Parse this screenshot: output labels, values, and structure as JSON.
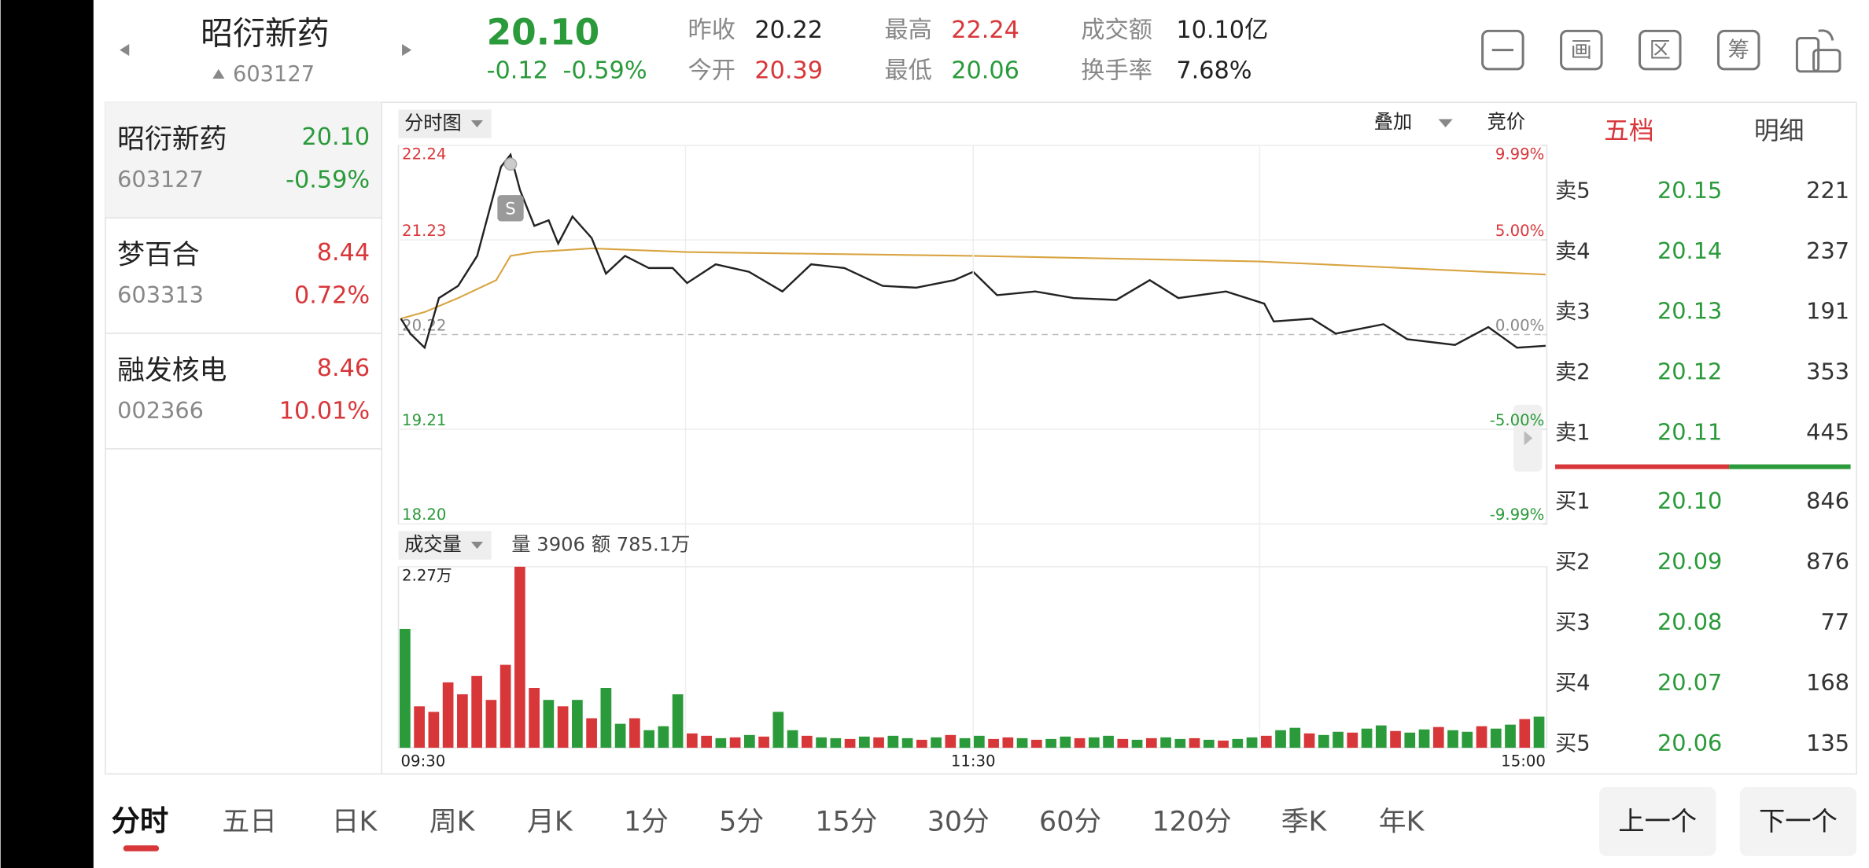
{
  "header": {
    "name": "昭衍新药",
    "code": "603127",
    "price": "20.10",
    "change": "-0.12",
    "change_pct": "-0.59%",
    "stats": [
      {
        "label": "昨收",
        "value": "20.22",
        "color": "#222222"
      },
      {
        "label": "今开",
        "value": "20.39",
        "color": "#d8373a"
      },
      {
        "label": "最高",
        "value": "22.24",
        "color": "#d8373a"
      },
      {
        "label": "最低",
        "value": "20.06",
        "color": "#2a9a3a"
      },
      {
        "label": "成交额",
        "value": "10.10亿",
        "color": "#222222"
      },
      {
        "label": "换手率",
        "value": "7.68%",
        "color": "#222222"
      }
    ],
    "icons": [
      "画",
      "区",
      "筹"
    ]
  },
  "watchlist": [
    {
      "name": "昭衍新药",
      "code": "603127",
      "price": "20.10",
      "change_pct": "-0.59%",
      "color": "#2a9a3a"
    },
    {
      "name": "梦百合",
      "code": "603313",
      "price": "8.44",
      "change_pct": "0.72%",
      "color": "#d8373a"
    },
    {
      "name": "融发核电",
      "code": "002366",
      "price": "8.46",
      "change_pct": "10.01%",
      "color": "#d8373a"
    }
  ],
  "chart": {
    "tab": "分时图",
    "overlay": "叠加",
    "auction": "竞价",
    "annotation": "S",
    "ylim": [
      18.2,
      22.24
    ],
    "yticks": [
      22.24,
      21.23,
      20.22,
      19.21,
      {
        "value": 18.2,
        "label": "18.20"
      }
    ],
    "y2lim": [
      -9.99,
      9.99
    ],
    "y2ticks": [
      {
        "value": 9.99,
        "label": "9.99%"
      },
      {
        "value": 5,
        "label": "5.00%"
      },
      {
        "value": 0,
        "label": "0.00%"
      },
      {
        "value": -5,
        "label": "-5.00%"
      },
      {
        "value": -9.99,
        "label": "-9.99%"
      }
    ],
    "xlim": [
      0,
      240
    ],
    "xticks": [
      {
        "value": 0,
        "label": "09:30"
      },
      {
        "value": 120,
        "label": "11:30"
      },
      {
        "value": 240,
        "label": "15:00"
      }
    ],
    "price": {
      "color": "#222222",
      "x": [
        0,
        2,
        5,
        8,
        12,
        16,
        18,
        21,
        23,
        25,
        28,
        31,
        33,
        36,
        40,
        43,
        47,
        52,
        57,
        60,
        66,
        73,
        80,
        86,
        93,
        101,
        108,
        116,
        120,
        125,
        133,
        141,
        150,
        157,
        163,
        173,
        181,
        183,
        191,
        196,
        206,
        211,
        221,
        228,
        234,
        240
      ],
      "values": [
        20.39,
        20.23,
        20.08,
        20.61,
        20.74,
        21.06,
        21.44,
        22.01,
        22.14,
        21.76,
        21.38,
        21.44,
        21.19,
        21.48,
        21.25,
        20.87,
        21.06,
        20.93,
        20.93,
        20.77,
        20.97,
        20.89,
        20.68,
        20.97,
        20.93,
        20.74,
        20.72,
        20.8,
        20.89,
        20.64,
        20.68,
        20.61,
        20.59,
        20.8,
        20.61,
        20.68,
        20.55,
        20.36,
        20.39,
        20.23,
        20.33,
        20.17,
        20.11,
        20.3,
        20.08,
        20.1
      ]
    },
    "avg": {
      "color": "#d9a441",
      "x": [
        0,
        5,
        12,
        20,
        23,
        28,
        40,
        60,
        120,
        180,
        240
      ],
      "values": [
        20.39,
        20.46,
        20.61,
        20.8,
        21.06,
        21.1,
        21.14,
        21.1,
        21.06,
        21.0,
        20.86
      ]
    }
  },
  "volume": {
    "tab": "成交量",
    "stats": [
      "量 3906",
      "额 785.1万"
    ],
    "ylim": [
      0,
      22700
    ],
    "yticks": [
      {
        "value": 22700,
        "label": "2.27万"
      }
    ],
    "up_color": "#d8373a",
    "down_color": "#2a9a3a",
    "values": [
      14900,
      5200,
      4500,
      8200,
      6700,
      9000,
      6000,
      10400,
      22700,
      7500,
      6000,
      5200,
      6000,
      3700,
      7500,
      3000,
      3700,
      2200,
      2700,
      6700,
      1800,
      1500,
      1200,
      1300,
      1600,
      1400,
      4500,
      2200,
      1500,
      1300,
      1200,
      1100,
      1400,
      1300,
      1500,
      1200,
      1000,
      1300,
      1600,
      1200,
      1500,
      1100,
      1300,
      1200,
      1000,
      1100,
      1400,
      1200,
      1300,
      1500,
      1100,
      1000,
      1200,
      1300,
      1100,
      1200,
      1000,
      900,
      1100,
      1300,
      1500,
      2200,
      2500,
      1800,
      1600,
      2000,
      1900,
      2400,
      2800,
      2100,
      1900,
      2300,
      2600,
      2200,
      2000,
      2700,
      2400,
      2900,
      3600,
      3900
    ],
    "rise": [
      0,
      1,
      1,
      1,
      1,
      1,
      1,
      1,
      1,
      1,
      0,
      1,
      0,
      1,
      0,
      0,
      1,
      0,
      0,
      0,
      1,
      1,
      0,
      1,
      0,
      1,
      0,
      0,
      1,
      0,
      0,
      1,
      0,
      1,
      0,
      0,
      1,
      0,
      1,
      0,
      0,
      1,
      1,
      0,
      1,
      0,
      0,
      1,
      0,
      0,
      1,
      0,
      1,
      0,
      0,
      1,
      0,
      1,
      0,
      0,
      1,
      0,
      0,
      1,
      0,
      0,
      1,
      0,
      0,
      1,
      0,
      0,
      1,
      0,
      0,
      1,
      0,
      0,
      1,
      0
    ]
  },
  "orderbook": {
    "tabs": [
      "五档",
      "明细"
    ],
    "price_color": "#2a9a3a",
    "asks": [
      {
        "label": "卖5",
        "price": "20.15",
        "volume": "221"
      },
      {
        "label": "卖4",
        "price": "20.14",
        "volume": "237"
      },
      {
        "label": "卖3",
        "price": "20.13",
        "volume": "191"
      },
      {
        "label": "卖2",
        "price": "20.12",
        "volume": "353"
      },
      {
        "label": "卖1",
        "price": "20.11",
        "volume": "445"
      }
    ],
    "bids": [
      {
        "label": "买1",
        "price": "20.10",
        "volume": "846"
      },
      {
        "label": "买2",
        "price": "20.09",
        "volume": "876"
      },
      {
        "label": "买3",
        "price": "20.08",
        "volume": "77"
      },
      {
        "label": "买4",
        "price": "20.07",
        "volume": "168"
      },
      {
        "label": "买5",
        "price": "20.06",
        "volume": "135"
      }
    ]
  },
  "periods": [
    "分时",
    "五日",
    "日K",
    "周K",
    "月K",
    "1分",
    "5分",
    "15分",
    "30分",
    "60分",
    "120分",
    "季K",
    "年K"
  ],
  "buttons": [
    "上一个",
    "下一个"
  ]
}
